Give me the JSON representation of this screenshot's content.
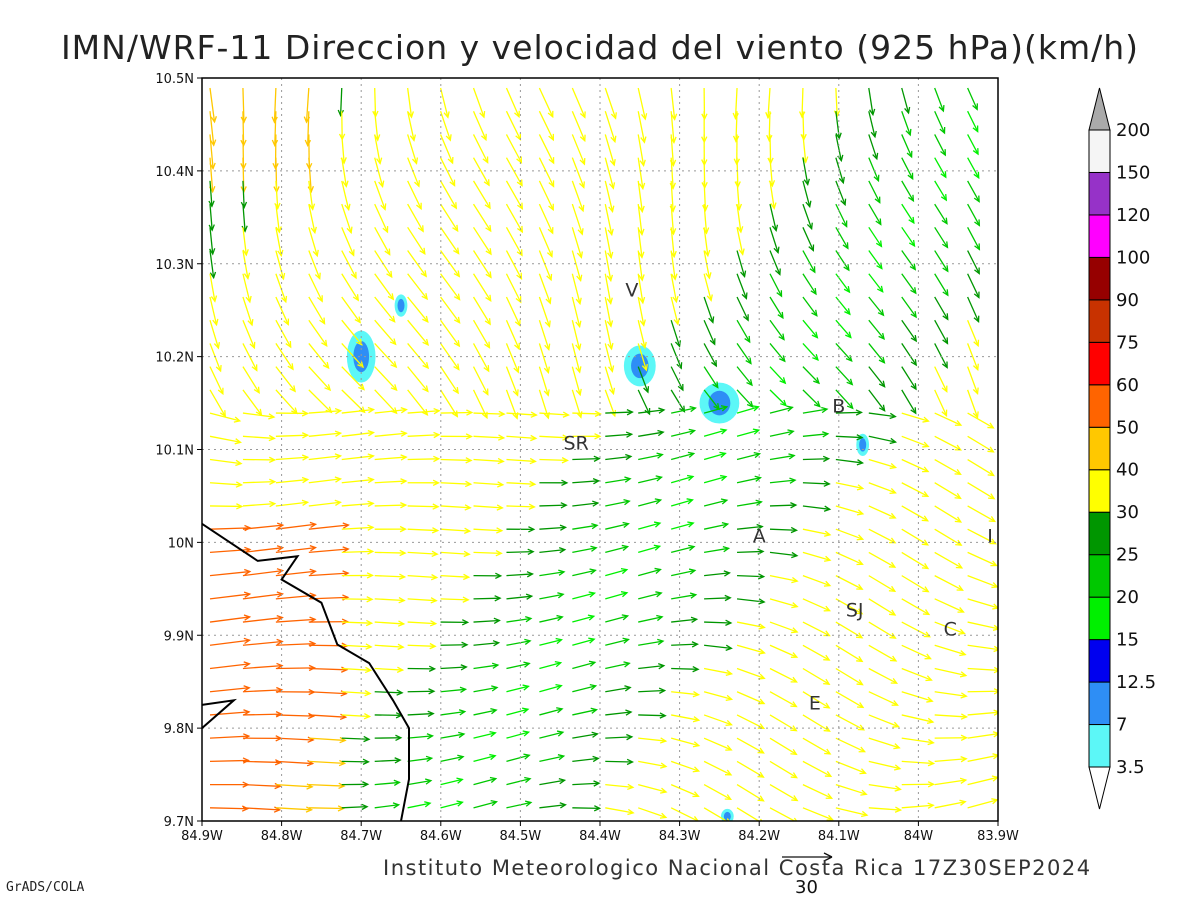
{
  "title": "IMN/WRF-11 Direccion y velocidad del viento (925 hPa)(km/h)",
  "credit": "Instituto Meteorologico Nacional Costa Rica 17Z30SEP2024",
  "software": "GrADS/COLA",
  "map": {
    "lon_range": [
      -84.9,
      -83.9
    ],
    "lat_range": [
      9.7,
      10.5
    ],
    "grid": "dotted",
    "lon_ticks": [
      "84.9W",
      "84.8W",
      "84.7W",
      "84.6W",
      "84.5W",
      "84.4W",
      "84.3W",
      "84.2W",
      "84.1W",
      "84W",
      "83.9W"
    ],
    "lat_ticks": [
      "9.7N",
      "9.8N",
      "9.9N",
      "10N",
      "10.1N",
      "10.2N",
      "10.3N",
      "10.4N",
      "10.5N"
    ],
    "places": [
      {
        "label": "V",
        "lon": -84.36,
        "lat": 10.265
      },
      {
        "label": "SR",
        "lon": -84.43,
        "lat": 10.1
      },
      {
        "label": "B",
        "lon": -84.1,
        "lat": 10.14
      },
      {
        "label": "A",
        "lon": -84.2,
        "lat": 10.0
      },
      {
        "label": "I",
        "lon": -83.91,
        "lat": 10.0
      },
      {
        "label": "SJ",
        "lon": -84.08,
        "lat": 9.92
      },
      {
        "label": "C",
        "lon": -83.96,
        "lat": 9.9
      },
      {
        "label": "E",
        "lon": -84.13,
        "lat": 9.82
      }
    ],
    "calm_spots": [
      {
        "lon": -84.7,
        "lat": 10.2,
        "rx": 0.018,
        "ry": 0.028
      },
      {
        "lon": -84.35,
        "lat": 10.19,
        "rx": 0.02,
        "ry": 0.022
      },
      {
        "lon": -84.25,
        "lat": 10.15,
        "rx": 0.025,
        "ry": 0.022
      },
      {
        "lon": -84.65,
        "lat": 10.255,
        "rx": 0.008,
        "ry": 0.012
      },
      {
        "lon": -84.07,
        "lat": 10.105,
        "rx": 0.008,
        "ry": 0.012
      },
      {
        "lon": -84.24,
        "lat": 9.705,
        "rx": 0.008,
        "ry": 0.008
      }
    ],
    "coastline": [
      [
        -84.9,
        10.02
      ],
      [
        -84.83,
        9.98
      ],
      [
        -84.78,
        9.985
      ],
      [
        -84.8,
        9.96
      ],
      [
        -84.75,
        9.935
      ],
      [
        -84.73,
        9.89
      ],
      [
        -84.69,
        9.87
      ],
      [
        -84.66,
        9.83
      ],
      [
        -84.64,
        9.8
      ],
      [
        -84.64,
        9.745
      ],
      [
        -84.65,
        9.7
      ]
    ],
    "island": [
      [
        -84.9,
        9.825
      ],
      [
        -84.86,
        9.83
      ],
      [
        -84.9,
        9.8
      ]
    ]
  },
  "colorbar": {
    "labels": [
      "3.5",
      "7",
      "12.5",
      "15",
      "20",
      "25",
      "30",
      "40",
      "50",
      "60",
      "75",
      "90",
      "100",
      "120",
      "150",
      "200"
    ],
    "colors": [
      "#5cf7f7",
      "#2e8ef5",
      "#0000ef",
      "#00f000",
      "#00c800",
      "#009600",
      "#ffff00",
      "#ffc800",
      "#ff6400",
      "#ff0000",
      "#c83200",
      "#960000",
      "#ff00ff",
      "#9632c8",
      "#f5f5f5",
      "#aaaaaa"
    ]
  },
  "reference_vector": {
    "value": "30"
  }
}
